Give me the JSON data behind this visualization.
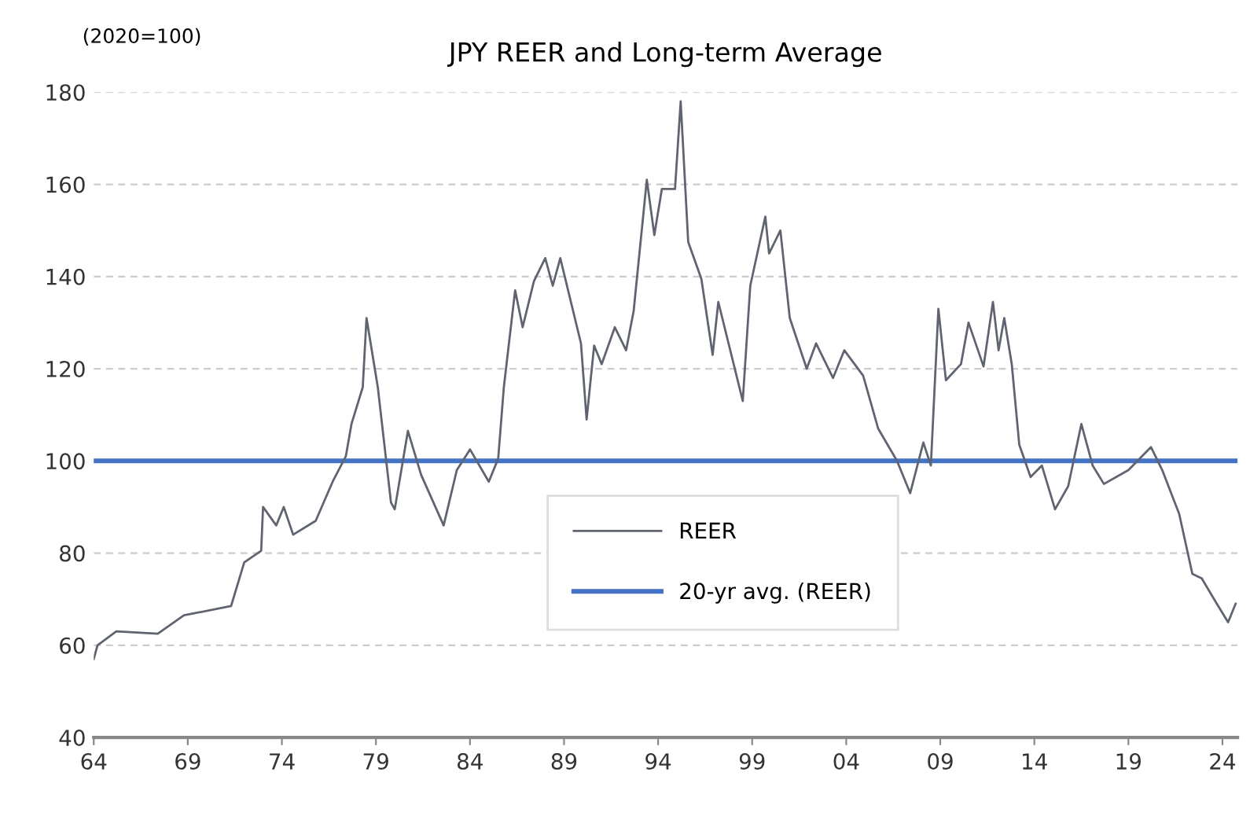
{
  "chart_data": {
    "type": "line",
    "title": "JPY REER and Long-term Average",
    "ylabel": "(2020=100)",
    "xlim": [
      1964,
      2024.8
    ],
    "ylim": [
      40,
      180
    ],
    "xticks": [
      {
        "value": 1964,
        "label": "64"
      },
      {
        "value": 1969,
        "label": "69"
      },
      {
        "value": 1974,
        "label": "74"
      },
      {
        "value": 1979,
        "label": "79"
      },
      {
        "value": 1984,
        "label": "84"
      },
      {
        "value": 1989,
        "label": "89"
      },
      {
        "value": 1994,
        "label": "94"
      },
      {
        "value": 1999,
        "label": "99"
      },
      {
        "value": 2004,
        "label": "04"
      },
      {
        "value": 2009,
        "label": "09"
      },
      {
        "value": 2014,
        "label": "14"
      },
      {
        "value": 2019,
        "label": "19"
      },
      {
        "value": 2024,
        "label": "24"
      }
    ],
    "yticks": [
      40,
      60,
      80,
      100,
      120,
      140,
      160,
      180
    ],
    "grid": "y",
    "legend": "bottom",
    "marker": "none",
    "line_style": "solid",
    "series": [
      {
        "name": "REER",
        "color": "#5f6470",
        "x": [
          1964.0,
          1964.2,
          1965.2,
          1967.4,
          1968.8,
          1971.3,
          1972.0,
          1972.9,
          1973.0,
          1973.7,
          1974.1,
          1974.6,
          1975.8,
          1976.7,
          1977.4,
          1977.7,
          1978.3,
          1978.5,
          1979.1,
          1979.8,
          1980.0,
          1980.7,
          1981.4,
          1982.6,
          1983.3,
          1984.0,
          1985.0,
          1985.5,
          1985.8,
          1986.4,
          1986.8,
          1987.4,
          1988.0,
          1988.4,
          1988.8,
          1989.9,
          1990.2,
          1990.6,
          1991.0,
          1991.7,
          1992.3,
          1992.7,
          1993.4,
          1993.8,
          1994.2,
          1994.9,
          1995.2,
          1995.6,
          1996.3,
          1996.9,
          1997.2,
          1998.5,
          1998.9,
          1999.7,
          1999.9,
          2000.5,
          2001.0,
          2001.9,
          2002.4,
          2003.3,
          2003.9,
          2004.9,
          2005.7,
          2006.7,
          2007.4,
          2008.1,
          2008.5,
          2008.9,
          2009.3,
          2010.1,
          2010.5,
          2011.3,
          2011.8,
          2012.1,
          2012.4,
          2012.8,
          2013.2,
          2013.8,
          2014.4,
          2015.1,
          2015.8,
          2016.5,
          2017.1,
          2017.7,
          2019.0,
          2020.2,
          2020.8,
          2021.7,
          2022.4,
          2022.9,
          2023.7,
          2024.3,
          2024.7
        ],
        "values": [
          57,
          60,
          63,
          62.5,
          66.5,
          68.5,
          78,
          80.5,
          90,
          86,
          90,
          84,
          87,
          95.5,
          101,
          108,
          116,
          131,
          116,
          91,
          89.5,
          106.5,
          97,
          86,
          98,
          102.5,
          95.5,
          100.5,
          116,
          137,
          129,
          139,
          144,
          138,
          144,
          125.5,
          109,
          125,
          121,
          129,
          124,
          132.5,
          161,
          149,
          159,
          159,
          178,
          147.5,
          139.5,
          123,
          134.5,
          113,
          138,
          153,
          145,
          150,
          131,
          120,
          125.5,
          118,
          124,
          118.5,
          107,
          100,
          93,
          104,
          99,
          133,
          117.5,
          121,
          130,
          120.5,
          134.5,
          124,
          131,
          121,
          103.5,
          96.5,
          99,
          89.5,
          94.5,
          108,
          99,
          95,
          98,
          103,
          98,
          88.5,
          75.5,
          74.5,
          69,
          65,
          69
        ]
      }
    ],
    "ref_lines": [
      {
        "axis": "y",
        "value": 100,
        "label": "20-yr avg. (REER)",
        "color": "#4472c4",
        "line_style": "solid"
      }
    ]
  }
}
